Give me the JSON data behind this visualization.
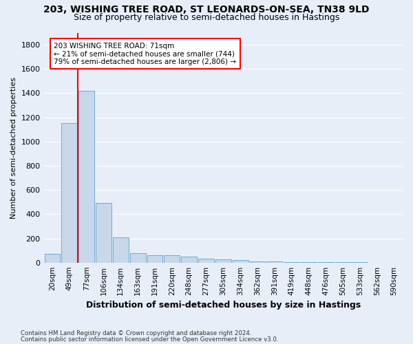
{
  "title": "203, WISHING TREE ROAD, ST LEONARDS-ON-SEA, TN38 9LD",
  "subtitle": "Size of property relative to semi-detached houses in Hastings",
  "xlabel": "Distribution of semi-detached houses by size in Hastings",
  "ylabel": "Number of semi-detached properties",
  "footnote1": "Contains HM Land Registry data © Crown copyright and database right 2024.",
  "footnote2": "Contains public sector information licensed under the Open Government Licence v3.0.",
  "bar_labels": [
    "20sqm",
    "49sqm",
    "77sqm",
    "106sqm",
    "134sqm",
    "163sqm",
    "191sqm",
    "220sqm",
    "248sqm",
    "277sqm",
    "305sqm",
    "334sqm",
    "362sqm",
    "391sqm",
    "419sqm",
    "448sqm",
    "476sqm",
    "505sqm",
    "533sqm",
    "562sqm",
    "590sqm"
  ],
  "bar_values": [
    70,
    1150,
    1420,
    490,
    210,
    75,
    60,
    60,
    48,
    35,
    25,
    20,
    10,
    8,
    5,
    4,
    3,
    2,
    2,
    1,
    1
  ],
  "bar_color": "#c8d8ea",
  "bar_edgecolor": "#6aaad4",
  "ylim": [
    0,
    1900
  ],
  "yticks": [
    0,
    200,
    400,
    600,
    800,
    1000,
    1200,
    1400,
    1600,
    1800
  ],
  "annotation_title": "203 WISHING TREE ROAD: 71sqm",
  "annotation_line1": "← 21% of semi-detached houses are smaller (744)",
  "annotation_line2": "79% of semi-detached houses are larger (2,806) →",
  "annotation_box_color": "white",
  "annotation_box_edgecolor": "red",
  "redline_color": "red",
  "redline_bar_index": 2,
  "bg_color": "#e8eef8",
  "grid_color": "white",
  "title_fontsize": 10,
  "subtitle_fontsize": 9,
  "xlabel_fontsize": 9,
  "ylabel_fontsize": 8,
  "bar_width": 0.92
}
